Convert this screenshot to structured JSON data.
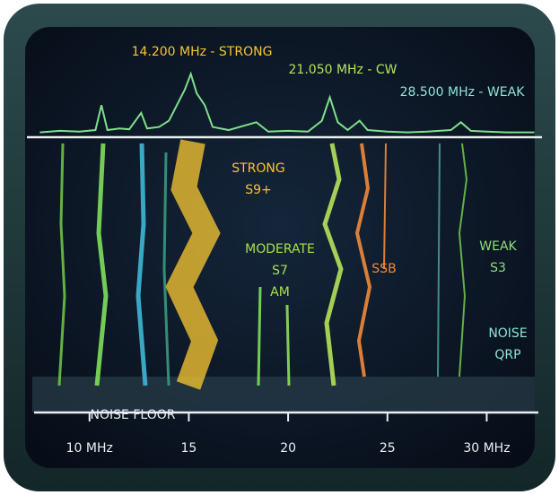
{
  "chart_data": {
    "type": "spectrum",
    "annotations": [
      {
        "text": "14.200 MHz - STRONG",
        "color": "#f7c530"
      },
      {
        "text": "21.050 MHz - CW",
        "color": "#b5e35a"
      },
      {
        "text": "28.500 MHz - WEAK",
        "color": "#8fe3d6"
      }
    ],
    "waterfall_labels": [
      {
        "lines": [
          "STRONG",
          "S9+"
        ],
        "color": "#f7c530"
      },
      {
        "lines": [
          "MODERATE",
          "S7",
          "AM"
        ],
        "color": "#a8e04a"
      },
      {
        "lines": [
          "SSB"
        ],
        "color": "#f08a3a"
      },
      {
        "lines": [
          "WEAK",
          "S3"
        ],
        "color": "#8fe07a"
      },
      {
        "lines": [
          "NOISE",
          "QRP"
        ],
        "color": "#8fe3d6"
      },
      {
        "lines": [
          "NOISE FLOOR"
        ],
        "color": "#e6eef2"
      }
    ],
    "x": [
      7.5,
      8.5,
      9.5,
      10.3,
      10.6,
      10.9,
      11.5,
      12.0,
      12.6,
      12.9,
      13.5,
      14.0,
      14.5,
      14.8,
      15.1,
      15.4,
      15.8,
      16.2,
      17.0,
      18.4,
      19.0,
      20.0,
      21.0,
      21.7,
      22.1,
      22.5,
      23.0,
      23.6,
      24.0,
      25.0,
      26.0,
      27.0,
      28.2,
      28.7,
      29.2,
      30.0,
      31.0,
      32.4
    ],
    "values": [
      5,
      7,
      6,
      8,
      40,
      8,
      10,
      9,
      30,
      10,
      12,
      20,
      45,
      60,
      80,
      55,
      40,
      12,
      8,
      18,
      6,
      7,
      6,
      20,
      50,
      18,
      8,
      20,
      8,
      6,
      5,
      6,
      8,
      18,
      7,
      6,
      5,
      5
    ],
    "color": "#7fe08a",
    "xlim": [
      7.3,
      32.6
    ],
    "ylim": [
      0,
      100
    ],
    "xticks": [
      {
        "value": 10,
        "label": "10 MHz"
      },
      15,
      20,
      25,
      {
        "value": 30,
        "label": "30 MHz"
      }
    ]
  }
}
